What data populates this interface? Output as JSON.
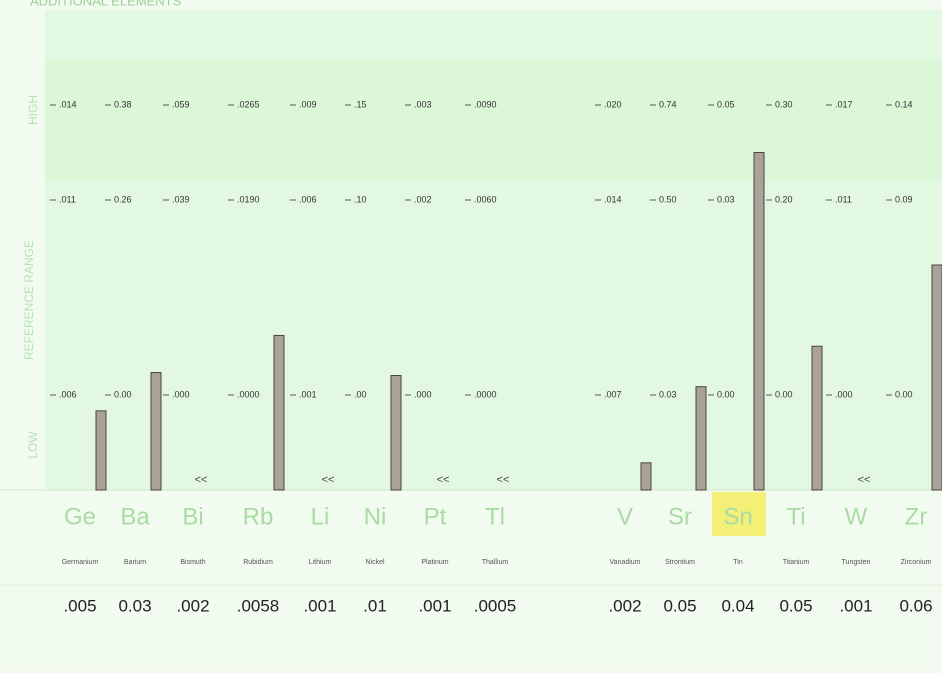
{
  "title": "ADDITIONAL ELEMENTS",
  "side_labels": {
    "high": "HIGH",
    "reference": "REFERENCE RANGE",
    "low": "LOW"
  },
  "columns": [
    {
      "symbol": "Ge",
      "name": "Germanium",
      "ticks": [
        {
          "value": 0.014,
          "label": ".014"
        },
        {
          "value": 0.011,
          "label": ".011"
        },
        {
          "value": 0.006,
          "label": ".006"
        }
      ],
      "result": {
        "value": 0.005,
        "label": ".005"
      }
    },
    {
      "symbol": "Ba",
      "name": "Barium",
      "ticks": [
        {
          "value": 0.38,
          "label": "0.38"
        },
        {
          "value": 0.26,
          "label": "0.26"
        },
        {
          "value": 0,
          "label": "0.00"
        }
      ],
      "result": {
        "value": 0.03,
        "label": "0.03"
      }
    },
    {
      "symbol": "Bi",
      "name": "Bismuth",
      "ticks": [
        {
          "value": 0.059,
          "label": ".059"
        },
        {
          "value": 0.039,
          "label": ".039"
        },
        {
          "value": 0,
          "label": ".000"
        }
      ],
      "result": {
        "value": 0.002,
        "label": ".002"
      },
      "flag": "<<"
    },
    {
      "symbol": "Rb",
      "name": "Rubidium",
      "ticks": [
        {
          "value": 0.0265,
          "label": ".0265"
        },
        {
          "value": 0.019,
          "label": ".0190"
        },
        {
          "value": 0,
          "label": ".0000"
        }
      ],
      "result": {
        "value": 0.0058,
        "label": ".0058"
      }
    },
    {
      "symbol": "Li",
      "name": "Lithium",
      "ticks": [
        {
          "value": 0.009,
          "label": ".009"
        },
        {
          "value": 0.006,
          "label": ".006"
        },
        {
          "value": 0.001,
          "label": ".001"
        }
      ],
      "result": {
        "value": 0.001,
        "label": ".001"
      },
      "flag": "<<"
    },
    {
      "symbol": "Ni",
      "name": "Nickel",
      "ticks": [
        {
          "value": 0.15,
          "label": ".15"
        },
        {
          "value": 0.1,
          "label": ".10"
        },
        {
          "value": 0,
          "label": ".00"
        }
      ],
      "result": {
        "value": 0.01,
        "label": ".01"
      }
    },
    {
      "symbol": "Pt",
      "name": "Platinum",
      "ticks": [
        {
          "value": 0.003,
          "label": ".003"
        },
        {
          "value": 0.002,
          "label": ".002"
        },
        {
          "value": 0,
          "label": ".000"
        }
      ],
      "result": {
        "value": 0.001,
        "label": ".001"
      },
      "flag": "<<"
    },
    {
      "symbol": "Tl",
      "name": "Thallium",
      "ticks": [
        {
          "value": 0.009,
          "label": ".0090"
        },
        {
          "value": 0.006,
          "label": ".0060"
        },
        {
          "value": 0,
          "label": ".0000"
        }
      ],
      "result": {
        "value": 0.0005,
        "label": ".0005"
      },
      "flag": "<<"
    },
    {
      "symbol": "V",
      "name": "Vanadium",
      "ticks": [
        {
          "value": 0.02,
          "label": ".020"
        },
        {
          "value": 0.014,
          "label": ".014"
        },
        {
          "value": 0.007,
          "label": ".007"
        }
      ],
      "result": {
        "value": 0.002,
        "label": ".002"
      }
    },
    {
      "symbol": "Sr",
      "name": "Strontium",
      "ticks": [
        {
          "value": 0.74,
          "label": "0.74"
        },
        {
          "value": 0.5,
          "label": "0.50"
        },
        {
          "value": 0.03,
          "label": "0.03"
        }
      ],
      "result": {
        "value": 0.05,
        "label": "0.05"
      }
    },
    {
      "symbol": "Sn",
      "name": "Tin",
      "ticks": [
        {
          "value": 0.05,
          "label": "0.05"
        },
        {
          "value": 0.03,
          "label": "0.03"
        },
        {
          "value": 0,
          "label": "0.00"
        }
      ],
      "result": {
        "value": 0.04,
        "label": "0.04"
      },
      "highlight": true
    },
    {
      "symbol": "Ti",
      "name": "Titanium",
      "ticks": [
        {
          "value": 0.3,
          "label": "0.30"
        },
        {
          "value": 0.2,
          "label": "0.20"
        },
        {
          "value": 0,
          "label": "0.00"
        }
      ],
      "result": {
        "value": 0.05,
        "label": "0.05"
      }
    },
    {
      "symbol": "W",
      "name": "Tungsten",
      "ticks": [
        {
          "value": 0.017,
          "label": ".017"
        },
        {
          "value": 0.011,
          "label": ".011"
        },
        {
          "value": 0,
          "label": ".000"
        }
      ],
      "result": {
        "value": 0.001,
        "label": ".001"
      },
      "flag": "<<"
    },
    {
      "symbol": "Zr",
      "name": "Zirconium",
      "ticks": [
        {
          "value": 0.14,
          "label": "0.14"
        },
        {
          "value": 0.09,
          "label": "0.09"
        },
        {
          "value": 0,
          "label": "0.00"
        }
      ],
      "result": {
        "value": 0.06,
        "label": "0.06"
      }
    }
  ]
}
